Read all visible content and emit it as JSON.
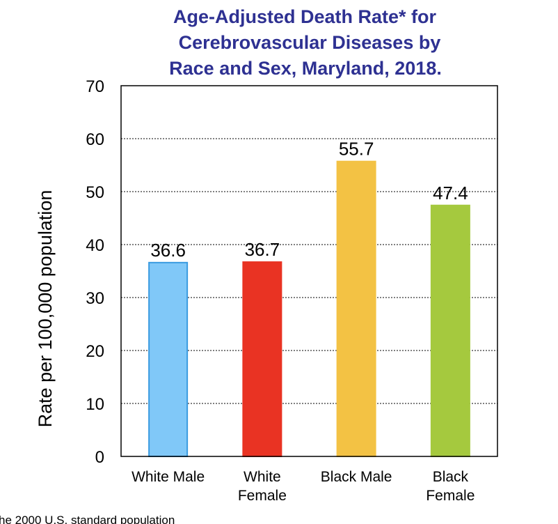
{
  "chart_data": {
    "type": "bar",
    "title_lines": [
      "Age-Adjusted Death Rate* for",
      "Cerebrovascular Diseases by",
      "Race and Sex, Maryland, 2018."
    ],
    "ylabel": "Rate per 100,000 population",
    "xlabel": "",
    "ylim": [
      0,
      70
    ],
    "yticks": [
      "0",
      "10",
      "20",
      "30",
      "40",
      "50",
      "60",
      "70"
    ],
    "grid": true,
    "categories": [
      [
        "White Male"
      ],
      [
        "White",
        "Female"
      ],
      [
        "Black Male"
      ],
      [
        "Black",
        "Female"
      ]
    ],
    "values": [
      36.6,
      36.7,
      55.7,
      47.4
    ],
    "value_labels": [
      "36.6",
      "36.7",
      "55.7",
      "47.4"
    ],
    "colors": [
      "#80c8f8",
      "#e93323",
      "#f3c244",
      "#a5c93e"
    ],
    "edge_colors": [
      "#3a9be0",
      "#e93323",
      "#f3c244",
      "#a5c93e"
    ],
    "footnote": "he 2000 U.S. standard population"
  }
}
